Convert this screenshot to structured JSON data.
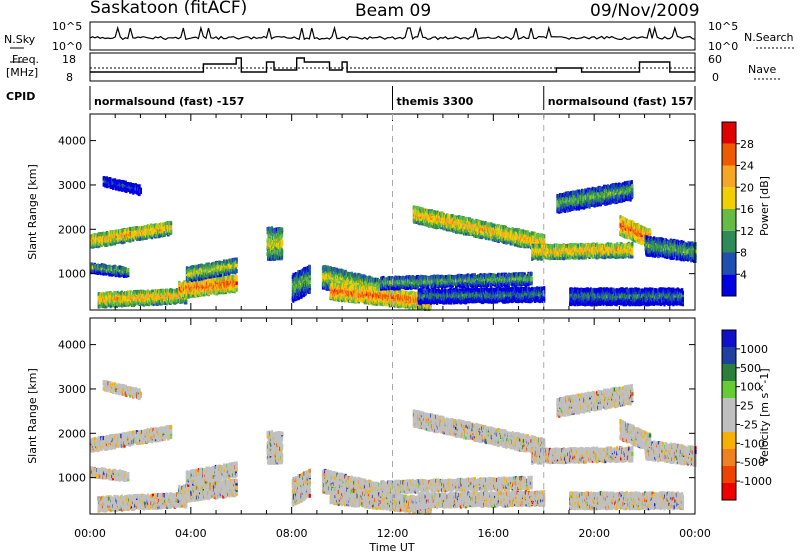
{
  "header": {
    "station": "Saskatoon (fitACF)",
    "beam": "Beam 09",
    "date": "09/Nov/2009"
  },
  "noise_panel": {
    "left_label": "N.Sky",
    "right_label": "N.Search",
    "tick_top": "10^5",
    "tick_bottom": "10^0",
    "right_tick_top": "10^5",
    "right_tick_bottom": "10^0"
  },
  "freq_panel": {
    "left_label_1": "Freq.",
    "left_label_2": "[MHz]",
    "ticks_left": [
      "18",
      "8"
    ],
    "ticks_right": [
      "60",
      "0"
    ],
    "right_label": "Nave"
  },
  "cpid": {
    "label": "CPID",
    "segments": [
      {
        "label": "normalsound (fast) -157",
        "start_h": 0,
        "end_h": 12
      },
      {
        "label": "themis 3300",
        "start_h": 12,
        "end_h": 18
      },
      {
        "label": "normalsound (fast) 157",
        "start_h": 18,
        "end_h": 24
      }
    ]
  },
  "colors": {
    "power": [
      "#0000e0",
      "#1f4fb0",
      "#2e8b57",
      "#66bb44",
      "#f0d000",
      "#f5a623",
      "#ee5a00",
      "#e00000"
    ],
    "velocity": [
      "#ee0000",
      "#ee4400",
      "#f08020",
      "#f5b000",
      "#c0c0c0",
      "#c0c0c0",
      "#66cc33",
      "#2a7f3a",
      "#2040a0",
      "#1010cc"
    ]
  },
  "chart_data": [
    {
      "type": "heatmap",
      "name": "power",
      "ylabel": "Slant Range [km]",
      "yticks": [
        1000,
        2000,
        3000,
        4000
      ],
      "ylim": [
        180,
        4600
      ],
      "xlim_hours": [
        0,
        24
      ],
      "colorbar_label": "Power [dB]",
      "colorbar_ticks": [
        4,
        8,
        12,
        16,
        20,
        24,
        28
      ],
      "colorbar_range": [
        0,
        32
      ]
    },
    {
      "type": "heatmap",
      "name": "velocity",
      "ylabel": "Slant Range [km]",
      "yticks": [
        1000,
        2000,
        3000,
        4000
      ],
      "ylim": [
        180,
        4600
      ],
      "xlim_hours": [
        0,
        24
      ],
      "colorbar_label": "Velocity [m s^-1]",
      "colorbar_ticks": [
        "1000",
        "500",
        "100",
        "25",
        "-25",
        "-100",
        "-500",
        "-1000"
      ]
    }
  ],
  "xaxis": {
    "ticks": [
      "00:00",
      "04:00",
      "08:00",
      "12:00",
      "16:00",
      "20:00",
      "00:00"
    ],
    "label": "Time UT"
  }
}
